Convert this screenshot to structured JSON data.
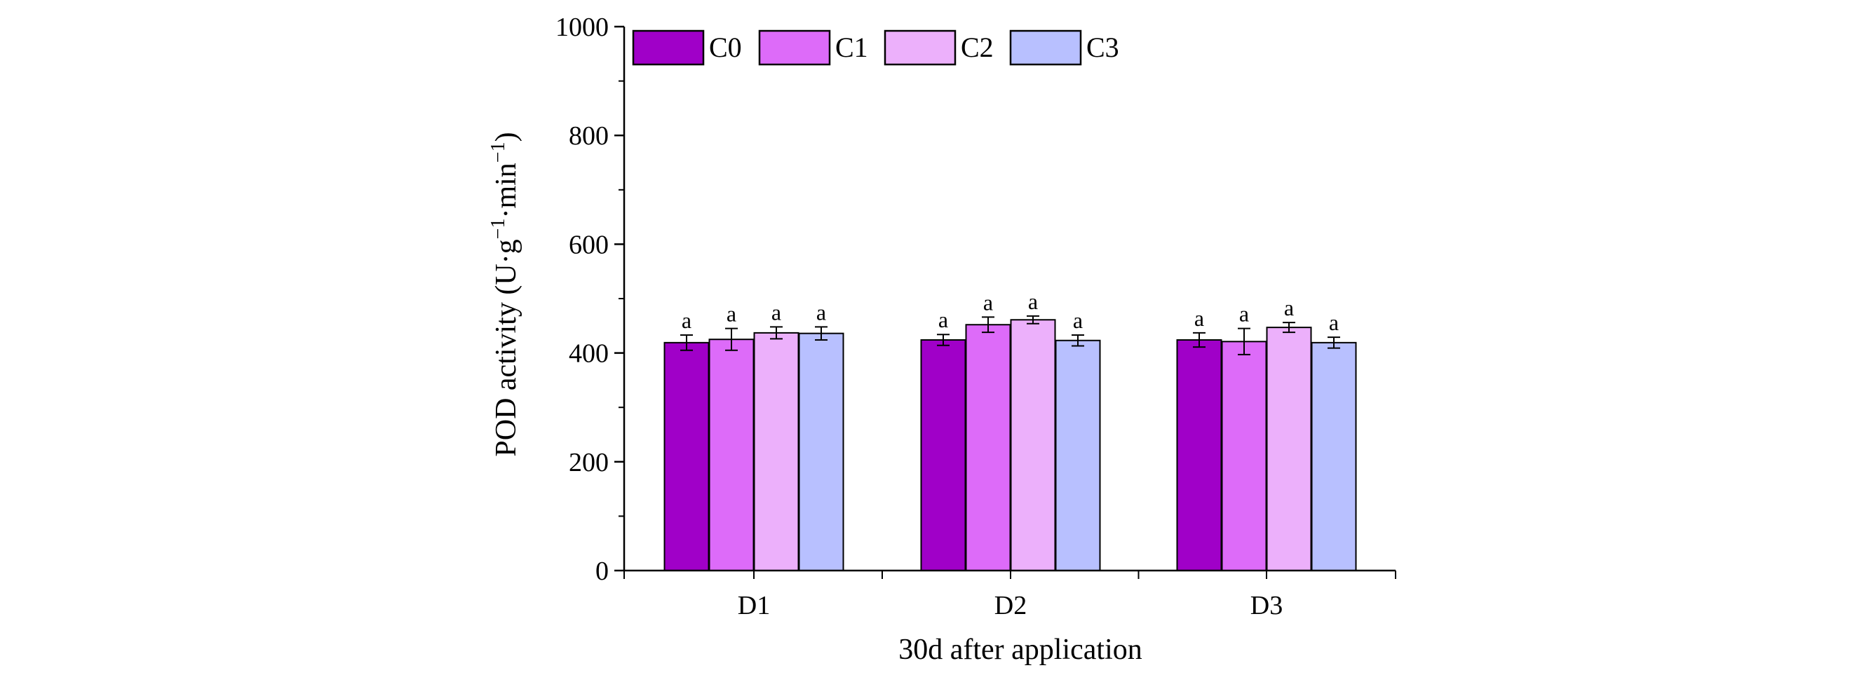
{
  "chart_data": {
    "type": "bar",
    "title": "",
    "xlabel": "30d after application",
    "ylabel_main": "POD activity (U·g",
    "ylabel_sup1": "−1",
    "ylabel_mid": "·min",
    "ylabel_sup2": "−1",
    "ylabel_end": ")",
    "ylim": [
      0,
      1000
    ],
    "yticks": [
      0,
      200,
      400,
      600,
      800,
      1000
    ],
    "categories": [
      "D1",
      "D2",
      "D3"
    ],
    "legend_position": "top-left",
    "series": [
      {
        "name": "C0",
        "color": "#a000c8",
        "values": [
          419,
          424,
          424
        ],
        "errors": [
          14,
          10,
          13
        ],
        "letters": [
          "a",
          "a",
          "a"
        ]
      },
      {
        "name": "C1",
        "color": "#dd6bf9",
        "values": [
          425,
          452,
          421
        ],
        "errors": [
          20,
          14,
          24
        ],
        "letters": [
          "a",
          "a",
          "a"
        ]
      },
      {
        "name": "C2",
        "color": "#ecb0fb",
        "values": [
          437,
          461,
          447
        ],
        "errors": [
          11,
          7,
          9
        ],
        "letters": [
          "a",
          "a",
          "a"
        ]
      },
      {
        "name": "C3",
        "color": "#b8c0ff",
        "values": [
          436,
          423,
          419
        ],
        "errors": [
          12,
          10,
          10
        ],
        "letters": [
          "a",
          "a",
          "a"
        ]
      }
    ]
  }
}
